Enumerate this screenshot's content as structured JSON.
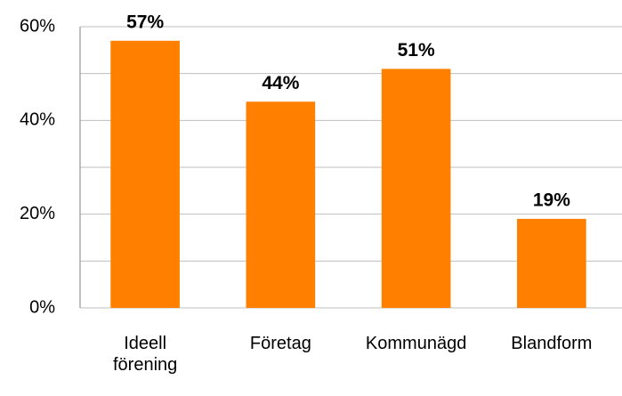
{
  "chart_data": {
    "type": "bar",
    "categories": [
      "Ideell\nförening",
      "Företag",
      "Kommunägd",
      "Blandform"
    ],
    "values": [
      57,
      44,
      51,
      19
    ],
    "value_labels": [
      "57%",
      "44%",
      "51%",
      "19%"
    ],
    "color": "#ff8000",
    "ylim": [
      0,
      60
    ],
    "yticks": [
      {
        "value": 0,
        "label": "0%"
      },
      {
        "value": 20,
        "label": "20%"
      },
      {
        "value": 40,
        "label": "40%"
      },
      {
        "value": 60,
        "label": "60%"
      }
    ],
    "minor_yticks": [
      10,
      30,
      50
    ],
    "grid": true
  }
}
